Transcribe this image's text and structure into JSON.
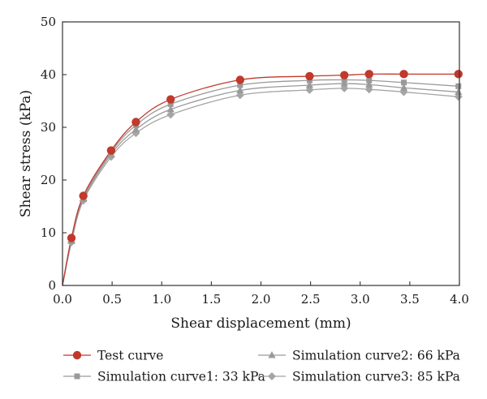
{
  "chart_data": {
    "type": "line",
    "title": "",
    "xlabel": "Shear displacement (mm)",
    "ylabel": "Shear stress (kPa)",
    "xlim": [
      0,
      4
    ],
    "ylim": [
      0,
      50
    ],
    "xticks": [
      0.0,
      0.5,
      1.0,
      1.5,
      2.0,
      2.5,
      3.0,
      3.5,
      4.0
    ],
    "xtick_labels": [
      "0.0",
      "0.5",
      "1.0",
      "1.5",
      "2.0",
      "2.5",
      "3.0",
      "3.5",
      "4.0"
    ],
    "yticks": [
      0,
      10,
      20,
      30,
      40,
      50
    ],
    "ytick_labels": [
      "0",
      "10",
      "20",
      "30",
      "40",
      "50"
    ],
    "grid": false,
    "legend_position": "bottom",
    "series": [
      {
        "name": "Test curve",
        "color": "#c0392b",
        "marker": "circle",
        "x": [
          0,
          0.09,
          0.21,
          0.49,
          0.74,
          1.09,
          1.79,
          2.49,
          2.84,
          3.09,
          3.44,
          3.99
        ],
        "y": [
          0,
          9.0,
          17.0,
          25.6,
          31.0,
          35.3,
          39.0,
          39.7,
          39.9,
          40.1,
          40.1,
          40.1
        ]
      },
      {
        "name": "Simulation curve1: 33 kPa",
        "color": "#9a9a9a",
        "marker": "square",
        "x": [
          0,
          0.09,
          0.21,
          0.49,
          0.74,
          1.09,
          1.79,
          2.49,
          2.84,
          3.09,
          3.44,
          3.99
        ],
        "y": [
          0,
          8.6,
          16.6,
          25.3,
          30.4,
          34.4,
          38.0,
          38.9,
          39.0,
          38.9,
          38.5,
          37.8
        ]
      },
      {
        "name": "Simulation curve2: 66 kPa",
        "color": "#9a9a9a",
        "marker": "triangle",
        "x": [
          0,
          0.09,
          0.21,
          0.49,
          0.74,
          1.09,
          1.79,
          2.49,
          2.84,
          3.09,
          3.44,
          3.99
        ],
        "y": [
          0,
          8.4,
          16.4,
          24.9,
          29.6,
          33.4,
          37.0,
          38.0,
          38.3,
          38.1,
          37.5,
          36.7
        ]
      },
      {
        "name": "Simulation curve3: 85 kPa",
        "color": "#a5a5a5",
        "marker": "diamond",
        "x": [
          0,
          0.09,
          0.21,
          0.49,
          0.74,
          1.09,
          1.79,
          2.49,
          2.84,
          3.09,
          3.44,
          3.99
        ],
        "y": [
          0,
          8.2,
          16.1,
          24.4,
          28.9,
          32.4,
          36.1,
          37.1,
          37.4,
          37.2,
          36.7,
          35.8
        ]
      }
    ]
  }
}
